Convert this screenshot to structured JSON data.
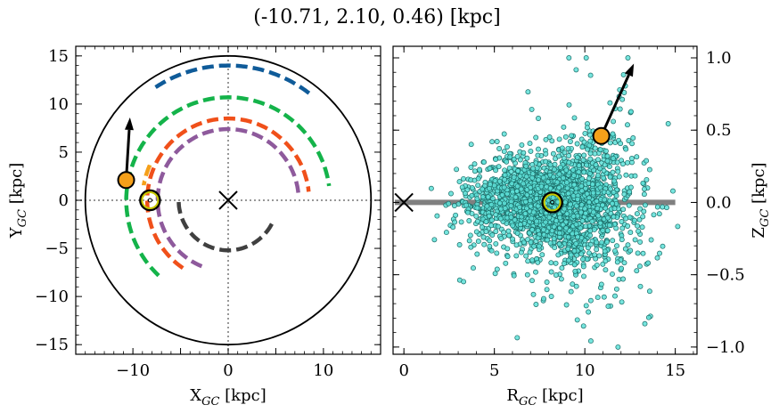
{
  "figure": {
    "title": "(-10.71, 2.10, 0.46) [kpc]"
  },
  "chart_data": [
    {
      "type": "line",
      "panel": "left",
      "title": "",
      "xlabel": {
        "main": "X",
        "sub": "GC",
        "unit": " [kpc]"
      },
      "ylabel": {
        "main": "Y",
        "sub": "GC",
        "unit": " [kpc]"
      },
      "xlim": [
        -16,
        16
      ],
      "ylim": [
        -16,
        16
      ],
      "xticks": [
        -10,
        -5,
        0,
        5,
        10
      ],
      "xticklabels": [
        "−10",
        "",
        "0",
        "",
        "10"
      ],
      "yticks": [
        -15,
        -10,
        -5,
        0,
        5,
        10,
        15
      ],
      "yticklabels": [
        "−15",
        "−10",
        "−5",
        "0",
        "5",
        "10",
        "15"
      ],
      "grid": false,
      "boundary_circle_radius": 15,
      "crosshair": {
        "x": 0,
        "y": 0,
        "style": "dotted"
      },
      "galactic_center_marker": {
        "x": 0,
        "y": 0,
        "symbol": "x"
      },
      "sun": {
        "x": -8.2,
        "y": 0
      },
      "star": {
        "x": -10.71,
        "y": 2.1,
        "vx": 0.4,
        "vy": 6.5,
        "color": "#f5a01a"
      },
      "spiral_arms": [
        {
          "color": "#0f5b99",
          "radius": 14.0,
          "theta_start_deg": 123,
          "theta_end_deg": 52
        },
        {
          "color": "#14b34a",
          "radius": 10.7,
          "theta_start_deg": 227,
          "theta_end_deg": 8
        },
        {
          "color": "#f0501a",
          "radius": 8.5,
          "theta_start_deg": 236,
          "theta_end_deg": 6
        },
        {
          "color": "#8e5a9c",
          "radius": 7.4,
          "theta_start_deg": 248,
          "theta_end_deg": 2
        },
        {
          "color": "#404040",
          "radius": 5.2,
          "theta_start_deg": 182,
          "theta_end_deg": 336
        },
        {
          "color": "#f5a01a",
          "radius": 9.0,
          "theta_start_deg": 156,
          "theta_end_deg": 170
        }
      ]
    },
    {
      "type": "scatter",
      "panel": "right",
      "title": "",
      "xlabel": {
        "main": "R",
        "sub": "GC",
        "unit": " [kpc]"
      },
      "ylabel": {
        "main": "Z",
        "sub": "GC",
        "unit": " [kpc]"
      },
      "xlim": [
        -0.6,
        16.2
      ],
      "ylim": [
        -1.05,
        1.08
      ],
      "xticks": [
        0,
        5,
        10,
        15
      ],
      "xticklabels": [
        "0",
        "5",
        "10",
        "15"
      ],
      "yticks": [
        -1.0,
        -0.5,
        0.0,
        0.5,
        1.0
      ],
      "yticklabels": [
        "−1.0",
        "−0.5",
        "0.0",
        "0.5",
        "1.0"
      ],
      "grid": false,
      "point_color": "#5ee0d8",
      "point_edge": "#1a6b66",
      "point_count_approx": 2500,
      "point_cloud": {
        "center_r": 8.2,
        "sigma_r": 2.2,
        "r_range": [
          1.5,
          15.2
        ],
        "sigma_z": 0.14,
        "flare": 0.05
      },
      "disk_line": {
        "x_start": -0.5,
        "x_end": 15,
        "y": 0,
        "color": "#808080"
      },
      "galactic_center_marker": {
        "x": 0,
        "y": 0,
        "symbol": "x"
      },
      "sun": {
        "x": 8.2,
        "y": 0
      },
      "star": {
        "x": 10.91,
        "y": 0.46,
        "vx": 1.8,
        "vy": 0.5,
        "color": "#f5a01a"
      }
    }
  ]
}
